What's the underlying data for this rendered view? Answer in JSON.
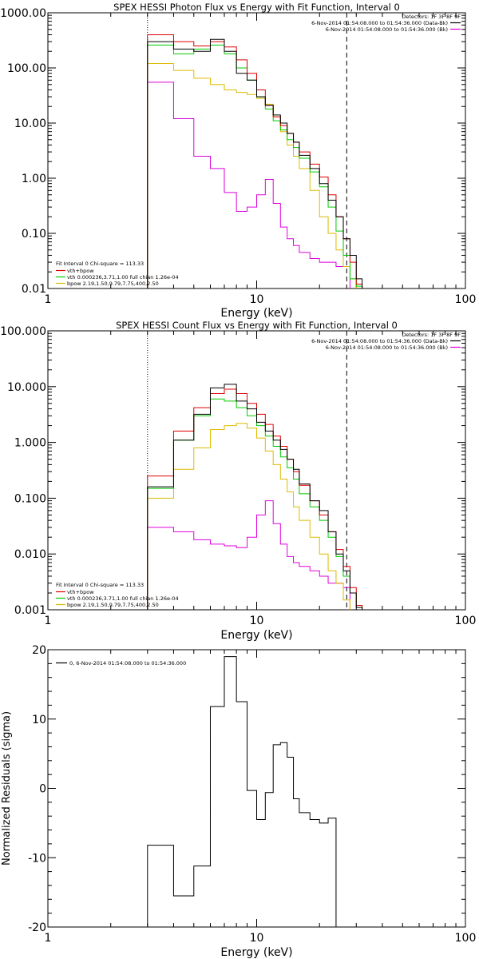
{
  "colors": {
    "data": "#000000",
    "total": "#dd0000",
    "vth": "#00cc00",
    "bpow": "#ddbb00",
    "bk": "#dd00dd",
    "ink": "#000000"
  },
  "chart_data": [
    {
      "type": "line",
      "title": "SPEX HESSI Photon Flux vs Energy with Fit Function, Interval 0",
      "xlabel": "Energy (keV)",
      "ylabel": "",
      "xscale": "log",
      "yscale": "log",
      "xlim": [
        1,
        100
      ],
      "ylim": [
        0.01,
        1000
      ],
      "xticks": [
        1,
        10,
        100
      ],
      "xtick_labels": [
        "1",
        "10",
        "100"
      ],
      "yticks": [
        0.01,
        0.1,
        1,
        10,
        100,
        1000
      ],
      "ytick_labels": [
        "0.01",
        "0.10",
        "1.00",
        "10.00",
        "100.00",
        "1000.00"
      ],
      "vlines": [
        {
          "x": 3,
          "style": "dotted"
        },
        {
          "x": 27,
          "style": "dashed"
        }
      ],
      "legend_top_right": [
        "Detectors: 1F 3F 8F 9F",
        "6-Nov-2014 01:54:08.000 to 01:54:36.000 (Data-Bk)",
        "6-Nov-2014 01:54:08.000 to 01:54:36.000 (Bk)"
      ],
      "legend_bottom_left": [
        "Fit Interval 0   Chi-square = 113.33",
        "vth+bpow",
        "vth 0.000236,3.71,1.00  full chian 1.26e-04",
        "bpow 2.19,1.50,9.79,7.75,400,2.50"
      ],
      "bin_edges": [
        3,
        4,
        5,
        6,
        7,
        8,
        9,
        10,
        11,
        12,
        13,
        14,
        15,
        16,
        18,
        20,
        22,
        24,
        26,
        28,
        30,
        32
      ],
      "series": [
        {
          "name": "6-Nov-2014 01:54:08.000 to 01:54:36.000 (Data-Bk)",
          "color_key": "data",
          "values": [
            300,
            220,
            200,
            330,
            200,
            80,
            60,
            30,
            21,
            14,
            10,
            6.5,
            4.5,
            2.6,
            1.5,
            0.8,
            0.4,
            0.2,
            0.08,
            0.04,
            0.015,
            null
          ]
        },
        {
          "name": "vth+bpow",
          "color_key": "total",
          "values": [
            400,
            300,
            250,
            300,
            240,
            140,
            80,
            40,
            21,
            13,
            9,
            6.5,
            4.5,
            3,
            1.8,
            1.05,
            0.5,
            0.2,
            0.08,
            0.03,
            0.012,
            null
          ]
        },
        {
          "name": "vth 0.000236,3.71,1.00  full chian 1.26e-04",
          "color_key": "vth",
          "values": [
            260,
            180,
            220,
            260,
            180,
            100,
            60,
            30,
            18,
            11,
            7.5,
            5,
            3.6,
            2.3,
            1.3,
            0.7,
            0.3,
            0.11,
            0.04,
            0.015,
            0.011,
            null
          ]
        },
        {
          "name": "bpow 2.19,1.50,9.79,7.75,400,2.50",
          "color_key": "bpow",
          "values": [
            120,
            90,
            65,
            50,
            40,
            36,
            33,
            28,
            22,
            13,
            7,
            4,
            2.5,
            1.5,
            0.6,
            0.2,
            0.1,
            0.05,
            0.025,
            0.015,
            null,
            null
          ]
        },
        {
          "name": "6-Nov-2014 01:54:08.000 to 01:54:36.000 (Bk)",
          "color_key": "bk",
          "values": [
            55,
            12,
            2.5,
            1.5,
            0.55,
            0.25,
            0.3,
            0.5,
            0.95,
            0.35,
            0.13,
            0.08,
            0.06,
            0.045,
            0.035,
            0.03,
            0.03,
            0.025,
            0.025,
            null,
            null,
            null
          ]
        }
      ]
    },
    {
      "type": "line",
      "title": "SPEX HESSI Count Flux vs Energy with Fit Function, Interval 0",
      "xlabel": "Energy (keV)",
      "ylabel": "",
      "xscale": "log",
      "yscale": "log",
      "xlim": [
        1,
        100
      ],
      "ylim": [
        0.001,
        100
      ],
      "xticks": [
        1,
        10,
        100
      ],
      "xtick_labels": [
        "1",
        "10",
        "100"
      ],
      "yticks": [
        0.001,
        0.01,
        0.1,
        1,
        10,
        100
      ],
      "ytick_labels": [
        "0.001",
        "0.010",
        "0.100",
        "1.000",
        "10.000",
        "100.000"
      ],
      "vlines": [
        {
          "x": 3,
          "style": "dotted"
        },
        {
          "x": 27,
          "style": "dashed"
        }
      ],
      "legend_top_right": [
        "Detectors: 1F 3F 8F 9F",
        "6-Nov-2014 01:54:08.000 to 01:54:36.000 (Data-Bk)",
        "6-Nov-2014 01:54:08.000 to 01:54:36.000 (Bk)"
      ],
      "legend_bottom_left": [
        "Fit Interval 0   Chi-square = 113.33",
        "vth+bpow",
        "vth 0.000236,3.71,1.00  full chian 1.26e-04",
        "bpow 2.19,1.50,9.79,7.75,400,2.50"
      ],
      "bin_edges": [
        3,
        4,
        5,
        6,
        7,
        8,
        9,
        10,
        11,
        12,
        13,
        14,
        15,
        16,
        18,
        20,
        22,
        24,
        26,
        28,
        30,
        32
      ],
      "series": [
        {
          "name": "6-Nov-2014 01:54:08.000 to 01:54:36.000 (Data-Bk)",
          "color_key": "data",
          "values": [
            0.16,
            1.1,
            3.2,
            9.5,
            11,
            5.5,
            4,
            2.3,
            1.6,
            1.1,
            0.75,
            0.5,
            0.33,
            0.18,
            0.09,
            0.06,
            0.025,
            0.01,
            0.005,
            0.002,
            0.0011,
            null
          ]
        },
        {
          "name": "vth+bpow",
          "color_key": "total",
          "values": [
            0.25,
            1.6,
            4.2,
            7.5,
            9,
            7.5,
            5,
            3.2,
            2.1,
            1.3,
            0.85,
            0.5,
            0.3,
            0.17,
            0.09,
            0.05,
            0.025,
            0.012,
            0.006,
            0.0025,
            0.0012,
            null
          ]
        },
        {
          "name": "vth 0.000236,3.71,1.00  full chian 1.26e-04",
          "color_key": "vth",
          "values": [
            0.15,
            1.1,
            3,
            6,
            5.5,
            4.2,
            3,
            2,
            1.3,
            0.85,
            0.55,
            0.35,
            0.22,
            0.12,
            0.07,
            0.04,
            0.02,
            0.009,
            0.004,
            0.002,
            0.0012,
            null
          ]
        },
        {
          "name": "bpow 2.19,1.50,9.79,7.75,400,2.50",
          "color_key": "bpow",
          "values": [
            0.1,
            0.33,
            0.8,
            1.7,
            2,
            2.2,
            1.8,
            1.2,
            0.7,
            0.4,
            0.22,
            0.13,
            0.07,
            0.04,
            0.02,
            0.01,
            0.005,
            0.003,
            0.0015,
            null,
            null,
            null
          ]
        },
        {
          "name": "6-Nov-2014 01:54:08.000 to 01:54:36.000 (Bk)",
          "color_key": "bk",
          "values": [
            0.03,
            0.025,
            0.018,
            0.015,
            0.014,
            0.013,
            0.02,
            0.05,
            0.09,
            0.035,
            0.015,
            0.009,
            0.007,
            0.006,
            0.005,
            0.004,
            0.003,
            0.003,
            0.0025,
            null,
            null,
            null
          ]
        }
      ]
    },
    {
      "type": "line",
      "title": "",
      "xlabel": "Energy (keV)",
      "ylabel": "Normalized Residuals (sigma)",
      "xscale": "log",
      "yscale": "linear",
      "xlim": [
        1,
        100
      ],
      "ylim": [
        -20,
        20
      ],
      "xticks": [
        1,
        10,
        100
      ],
      "xtick_labels": [
        "1",
        "10",
        "100"
      ],
      "yticks": [
        -20,
        -10,
        0,
        10,
        20
      ],
      "ytick_labels": [
        "-20",
        "-10",
        "0",
        "10",
        "20"
      ],
      "legend": [
        "0,  6-Nov-2014 01:54:08.000 to 01:54:36.000"
      ],
      "bin_edges": [
        3,
        4,
        5,
        6,
        7,
        8,
        9,
        10,
        11,
        12,
        13,
        14,
        15,
        16,
        18,
        20,
        22,
        24,
        26,
        28
      ],
      "series": [
        {
          "name": "0,  6-Nov-2014 01:54:08.000 to 01:54:36.000",
          "color_key": "data",
          "values": [
            -8.2,
            -15.5,
            -11.2,
            11.8,
            19,
            12.5,
            -0.3,
            -4.5,
            -0.6,
            6.3,
            6.6,
            4.5,
            -1.5,
            -3.5,
            -4.5,
            -5,
            -4.3,
            null,
            null
          ]
        }
      ]
    }
  ]
}
